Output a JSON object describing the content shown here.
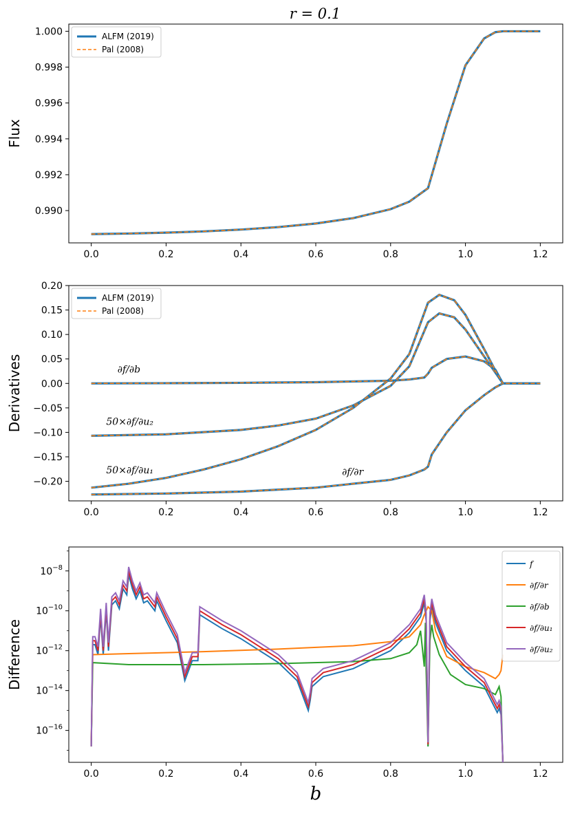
{
  "figure": {
    "title": "r = 0.1",
    "shared_xlabel": "b"
  },
  "chart_data": [
    {
      "id": "flux",
      "type": "line",
      "ylabel": "Flux",
      "xlim": [
        -0.06,
        1.26
      ],
      "ylim": [
        0.9882,
        1.0004
      ],
      "xticks": [
        0.0,
        0.2,
        0.4,
        0.6,
        0.8,
        1.0,
        1.2
      ],
      "xtick_labels": [
        "0.0",
        "0.2",
        "0.4",
        "0.6",
        "0.8",
        "1.0",
        "1.2"
      ],
      "yticks": [
        0.99,
        0.992,
        0.994,
        0.996,
        0.998,
        1.0
      ],
      "ytick_labels": [
        "0.990",
        "0.992",
        "0.994",
        "0.996",
        "0.998",
        "1.000"
      ],
      "legend": {
        "position": "top-left",
        "entries": [
          "ALFM (2019)",
          "Pal (2008)"
        ]
      },
      "series": [
        {
          "name": "ALFM (2019)",
          "color": "#1f77b4",
          "style": "solid",
          "x": [
            0.0,
            0.1,
            0.2,
            0.3,
            0.4,
            0.5,
            0.6,
            0.7,
            0.8,
            0.85,
            0.9,
            0.95,
            1.0,
            1.05,
            1.08,
            1.1,
            1.2
          ],
          "y": [
            0.98869,
            0.98872,
            0.98877,
            0.98884,
            0.98894,
            0.98908,
            0.98928,
            0.98958,
            0.99008,
            0.9905,
            0.99125,
            0.99485,
            0.9981,
            0.9996,
            0.99995,
            1.0,
            1.0
          ]
        },
        {
          "name": "Pal (2008)",
          "color": "#ff7f0e",
          "style": "dashed",
          "x": [
            0.0,
            0.1,
            0.2,
            0.3,
            0.4,
            0.5,
            0.6,
            0.7,
            0.8,
            0.85,
            0.9,
            0.95,
            1.0,
            1.05,
            1.08,
            1.1,
            1.2
          ],
          "y": [
            0.98869,
            0.98872,
            0.98877,
            0.98884,
            0.98894,
            0.98908,
            0.98928,
            0.98958,
            0.99008,
            0.9905,
            0.99125,
            0.99485,
            0.9981,
            0.9996,
            0.99995,
            1.0,
            1.0
          ]
        }
      ]
    },
    {
      "id": "derivatives",
      "type": "line",
      "ylabel": "Derivatives",
      "xlim": [
        -0.06,
        1.26
      ],
      "ylim": [
        -0.24,
        0.2
      ],
      "xticks": [
        0.0,
        0.2,
        0.4,
        0.6,
        0.8,
        1.0,
        1.2
      ],
      "xtick_labels": [
        "0.0",
        "0.2",
        "0.4",
        "0.6",
        "0.8",
        "1.0",
        "1.2"
      ],
      "yticks": [
        -0.2,
        -0.15,
        -0.1,
        -0.05,
        0.0,
        0.05,
        0.1,
        0.15,
        0.2
      ],
      "ytick_labels": [
        "−0.20",
        "−0.15",
        "−0.10",
        "−0.05",
        "0.00",
        "0.05",
        "0.10",
        "0.15",
        "0.20"
      ],
      "legend": {
        "position": "top-left",
        "entries": [
          "ALFM (2019)",
          "Pal (2008)"
        ]
      },
      "annotations": [
        {
          "text": "∂f/∂b",
          "x": 0.07,
          "y": 0.022
        },
        {
          "text": "50×∂f/∂u₂",
          "x": 0.04,
          "y": -0.085
        },
        {
          "text": "50×∂f/∂u₁",
          "x": 0.04,
          "y": -0.184
        },
        {
          "text": "∂f/∂r",
          "x": 0.67,
          "y": -0.187
        }
      ],
      "curves": [
        {
          "label": "∂f/∂b",
          "x": [
            0.0,
            0.2,
            0.4,
            0.6,
            0.8,
            0.85,
            0.89,
            0.9,
            0.91,
            0.95,
            1.0,
            1.05,
            1.08,
            1.1,
            1.2
          ],
          "y": [
            0.0,
            0.0005,
            0.0012,
            0.0025,
            0.0055,
            0.008,
            0.012,
            0.02,
            0.032,
            0.05,
            0.055,
            0.045,
            0.028,
            0.0,
            0.0
          ]
        },
        {
          "label": "∂f/∂r",
          "x": [
            0.0,
            0.2,
            0.4,
            0.6,
            0.8,
            0.85,
            0.89,
            0.9,
            0.91,
            0.95,
            1.0,
            1.05,
            1.08,
            1.1,
            1.2
          ],
          "y": [
            -0.227,
            -0.225,
            -0.221,
            -0.213,
            -0.197,
            -0.188,
            -0.176,
            -0.17,
            -0.145,
            -0.1,
            -0.055,
            -0.024,
            -0.008,
            0.0,
            0.0
          ]
        },
        {
          "label": "50×∂f/∂u₂",
          "x": [
            0.0,
            0.2,
            0.4,
            0.5,
            0.6,
            0.7,
            0.8,
            0.85,
            0.9,
            0.93,
            0.97,
            1.0,
            1.05,
            1.08,
            1.1,
            1.2
          ],
          "y": [
            -0.107,
            -0.104,
            -0.095,
            -0.086,
            -0.072,
            -0.045,
            -0.005,
            0.035,
            0.125,
            0.143,
            0.135,
            0.11,
            0.055,
            0.022,
            0.0,
            0.0
          ]
        },
        {
          "label": "50×∂f/∂u₁",
          "x": [
            0.0,
            0.1,
            0.2,
            0.3,
            0.4,
            0.5,
            0.6,
            0.7,
            0.8,
            0.85,
            0.9,
            0.93,
            0.97,
            1.0,
            1.05,
            1.08,
            1.1,
            1.2
          ],
          "y": [
            -0.213,
            -0.205,
            -0.193,
            -0.176,
            -0.155,
            -0.128,
            -0.095,
            -0.05,
            0.01,
            0.06,
            0.165,
            0.181,
            0.17,
            0.14,
            0.07,
            0.026,
            0.0,
            0.0
          ]
        }
      ]
    },
    {
      "id": "difference",
      "type": "line",
      "scale_y": "log",
      "ylabel": "Difference",
      "xlabel": "b",
      "xlim": [
        -0.06,
        1.26
      ],
      "ylim_log10": [
        -17.6,
        -6.8
      ],
      "xticks": [
        0.0,
        0.2,
        0.4,
        0.6,
        0.8,
        1.0,
        1.2
      ],
      "xtick_labels": [
        "0.0",
        "0.2",
        "0.4",
        "0.6",
        "0.8",
        "1.0",
        "1.2"
      ],
      "ytick_exponents": [
        -16,
        -14,
        -12,
        -10,
        -8
      ],
      "ytick_base": "10",
      "legend": {
        "position": "top-right",
        "entries": [
          "f",
          "∂f/∂r",
          "∂f/∂b",
          "∂f/∂u₁",
          "∂f/∂u₂"
        ]
      },
      "series": [
        {
          "name": "f",
          "color": "#1f77b4",
          "x": [
            0.0,
            0.004,
            0.01,
            0.018,
            0.025,
            0.032,
            0.04,
            0.046,
            0.055,
            0.065,
            0.075,
            0.085,
            0.095,
            0.1,
            0.11,
            0.12,
            0.13,
            0.14,
            0.15,
            0.17,
            0.175,
            0.2,
            0.23,
            0.25,
            0.27,
            0.285,
            0.29,
            0.35,
            0.4,
            0.45,
            0.5,
            0.55,
            0.58,
            0.585,
            0.59,
            0.62,
            0.7,
            0.8,
            0.85,
            0.88,
            0.89,
            0.895,
            0.9,
            0.905,
            0.91,
            0.92,
            0.95,
            1.0,
            1.05,
            1.085,
            1.09,
            1.095,
            1.1
          ],
          "logy": [
            -16.8,
            -11.7,
            -11.7,
            -12.2,
            -10.3,
            -12.2,
            -10.0,
            -12.0,
            -9.7,
            -9.5,
            -9.9,
            -8.9,
            -9.2,
            -8.2,
            -8.9,
            -9.4,
            -9.0,
            -9.6,
            -9.5,
            -10.0,
            -9.5,
            -10.5,
            -11.6,
            -13.5,
            -12.5,
            -12.5,
            -10.2,
            -10.9,
            -11.4,
            -12.0,
            -12.6,
            -13.5,
            -15.0,
            -14.5,
            -13.8,
            -13.3,
            -12.9,
            -12.0,
            -11.1,
            -10.3,
            -9.6,
            -10.5,
            -16.8,
            -10.5,
            -9.8,
            -10.6,
            -12.0,
            -13.0,
            -13.8,
            -15.1,
            -14.9,
            -15.2,
            -17.6
          ]
        },
        {
          "name": "∂f/∂r",
          "color": "#ff7f0e",
          "x": [
            0.0,
            0.004,
            0.1,
            0.3,
            0.5,
            0.7,
            0.8,
            0.85,
            0.88,
            0.89,
            0.9,
            0.91,
            0.92,
            0.95,
            1.0,
            1.05,
            1.08,
            1.09,
            1.095,
            1.1
          ],
          "logy": [
            -16.5,
            -12.2,
            -12.15,
            -12.05,
            -11.92,
            -11.75,
            -11.55,
            -11.3,
            -10.7,
            -10.2,
            -9.8,
            -10.0,
            -11.0,
            -12.3,
            -12.8,
            -13.1,
            -13.4,
            -13.2,
            -13.0,
            -12.2
          ]
        },
        {
          "name": "∂f/∂b",
          "color": "#2ca02c",
          "x": [
            0.0,
            0.004,
            0.1,
            0.3,
            0.5,
            0.7,
            0.8,
            0.85,
            0.87,
            0.88,
            0.89,
            0.893,
            0.895,
            0.9,
            0.905,
            0.91,
            0.915,
            0.93,
            0.96,
            1.0,
            1.05,
            1.08,
            1.09,
            1.095,
            1.1
          ],
          "logy": [
            -16.8,
            -12.6,
            -12.7,
            -12.7,
            -12.65,
            -12.55,
            -12.4,
            -12.1,
            -11.7,
            -11.0,
            -12.8,
            -10.6,
            -13.0,
            -16.8,
            -11.5,
            -10.7,
            -11.3,
            -12.2,
            -13.2,
            -13.7,
            -13.9,
            -14.2,
            -13.8,
            -14.3,
            -17.6
          ]
        },
        {
          "name": "∂f/∂u₁",
          "color": "#d62728",
          "x": [
            0.0,
            0.004,
            0.01,
            0.018,
            0.025,
            0.032,
            0.04,
            0.046,
            0.055,
            0.065,
            0.075,
            0.085,
            0.095,
            0.1,
            0.11,
            0.12,
            0.13,
            0.14,
            0.15,
            0.17,
            0.175,
            0.2,
            0.23,
            0.25,
            0.27,
            0.285,
            0.29,
            0.35,
            0.4,
            0.45,
            0.5,
            0.55,
            0.58,
            0.585,
            0.59,
            0.62,
            0.7,
            0.8,
            0.85,
            0.88,
            0.89,
            0.895,
            0.9,
            0.905,
            0.91,
            0.92,
            0.95,
            1.0,
            1.05,
            1.085,
            1.09,
            1.095,
            1.1
          ],
          "logy": [
            -16.8,
            -11.5,
            -11.5,
            -12.0,
            -10.1,
            -12.0,
            -9.8,
            -11.8,
            -9.5,
            -9.3,
            -9.7,
            -8.7,
            -9.0,
            -8.0,
            -8.7,
            -9.2,
            -8.8,
            -9.4,
            -9.3,
            -9.8,
            -9.3,
            -10.3,
            -11.4,
            -13.3,
            -12.3,
            -12.3,
            -10.0,
            -10.7,
            -11.2,
            -11.8,
            -12.4,
            -13.3,
            -14.8,
            -14.3,
            -13.6,
            -13.1,
            -12.7,
            -11.8,
            -10.9,
            -10.1,
            -9.4,
            -10.3,
            -16.7,
            -10.3,
            -9.6,
            -10.4,
            -11.8,
            -12.8,
            -13.6,
            -14.9,
            -14.7,
            -15.0,
            -17.6
          ]
        },
        {
          "name": "∂f/∂u₂",
          "color": "#9467bd",
          "x": [
            0.0,
            0.004,
            0.01,
            0.018,
            0.025,
            0.032,
            0.04,
            0.046,
            0.055,
            0.065,
            0.075,
            0.085,
            0.095,
            0.1,
            0.11,
            0.12,
            0.13,
            0.14,
            0.15,
            0.17,
            0.175,
            0.2,
            0.23,
            0.25,
            0.27,
            0.285,
            0.29,
            0.35,
            0.4,
            0.45,
            0.5,
            0.55,
            0.58,
            0.585,
            0.59,
            0.62,
            0.7,
            0.8,
            0.85,
            0.88,
            0.89,
            0.895,
            0.9,
            0.905,
            0.91,
            0.92,
            0.95,
            1.0,
            1.05,
            1.085,
            1.09,
            1.095,
            1.1
          ],
          "logy": [
            -16.8,
            -11.3,
            -11.3,
            -11.8,
            -9.9,
            -11.8,
            -9.6,
            -11.6,
            -9.3,
            -9.1,
            -9.5,
            -8.5,
            -8.8,
            -7.8,
            -8.5,
            -9.0,
            -8.6,
            -9.2,
            -9.1,
            -9.6,
            -9.1,
            -10.1,
            -11.2,
            -13.1,
            -12.1,
            -12.1,
            -9.8,
            -10.5,
            -11.0,
            -11.6,
            -12.2,
            -13.1,
            -14.6,
            -14.1,
            -13.4,
            -12.9,
            -12.5,
            -11.6,
            -10.7,
            -9.9,
            -9.2,
            -10.1,
            -16.6,
            -10.1,
            -9.4,
            -10.2,
            -11.6,
            -12.6,
            -13.4,
            -14.7,
            -14.5,
            -14.8,
            -17.6
          ]
        }
      ]
    }
  ]
}
